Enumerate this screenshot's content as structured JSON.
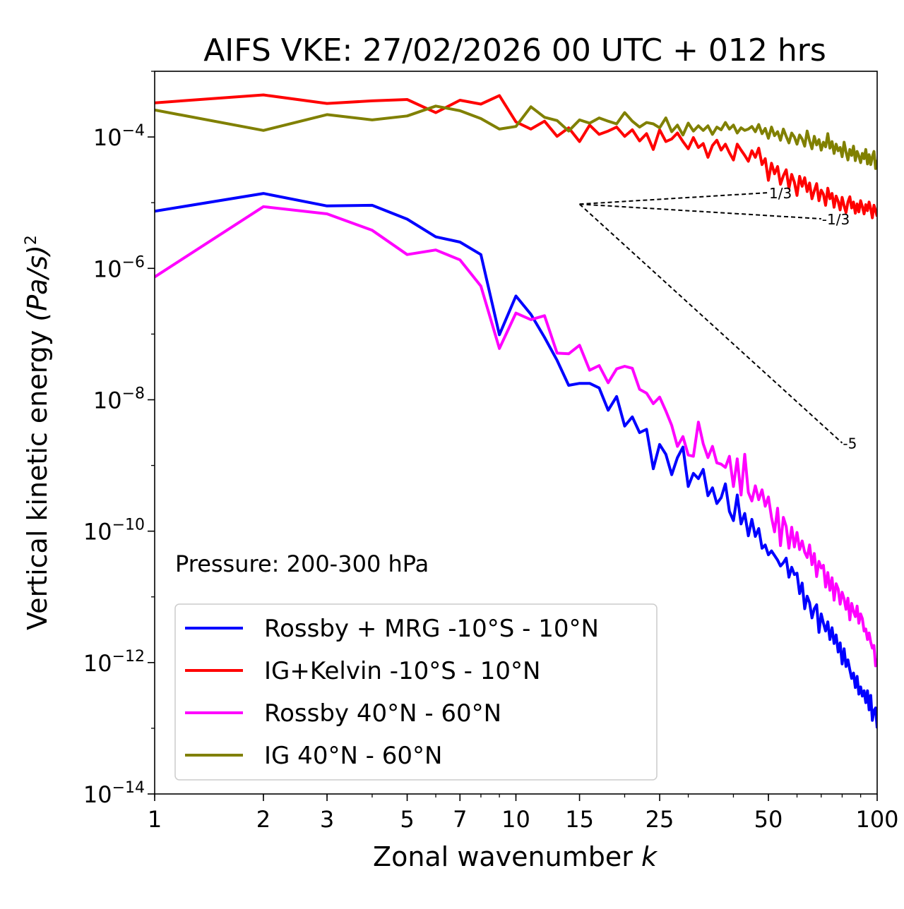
{
  "chart_data": {
    "type": "line",
    "title": "AIFS VKE: 27/02/2026 00 UTC + 012 hrs",
    "xlabel": "Zonal wavenumber",
    "xlabel_var": "k",
    "ylabel": "Vertical kinetic energy",
    "ylabel_unit": "(Pa/s)",
    "ylabel_exp": "2",
    "xscale": "log",
    "yscale": "log",
    "xlim": [
      1,
      100
    ],
    "ylim": [
      1e-14,
      0.001
    ],
    "x_ticks": [
      "1",
      "2",
      "3",
      "5",
      "7",
      "10",
      "15",
      "25",
      "50",
      "100"
    ],
    "y_ticks": [
      {
        "base": "10",
        "exp": "−4",
        "value": -4
      },
      {
        "base": "10",
        "exp": "−6",
        "value": -6
      },
      {
        "base": "10",
        "exp": "−8",
        "value": -8
      },
      {
        "base": "10",
        "exp": "−10",
        "value": -10
      },
      {
        "base": "10",
        "exp": "−12",
        "value": -12
      },
      {
        "base": "10",
        "exp": "−14",
        "value": -14
      }
    ],
    "annotation": "Pressure: 200-300 hPa",
    "legend_position": "bottom-left",
    "slopes": [
      {
        "label": "1/3",
        "exponent": 0.3333,
        "x_start": 15,
        "y_start": 9.5e-06,
        "x_end": 50
      },
      {
        "label": "-1/3",
        "exponent": -0.3333,
        "x_start": 15,
        "y_start": 9.5e-06,
        "x_end": 70
      },
      {
        "label": "-5",
        "exponent": -5,
        "x_start": 15,
        "y_start": 9.5e-06,
        "x_end": 80
      }
    ],
    "x": [
      1,
      2,
      3,
      4,
      5,
      6,
      7,
      8,
      9,
      10,
      11,
      12,
      13,
      14,
      15,
      16,
      17,
      18,
      19,
      20,
      21,
      22,
      23,
      24,
      25,
      26,
      27,
      28,
      29,
      30,
      31,
      32,
      33,
      34,
      35,
      36,
      37,
      38,
      39,
      40,
      41,
      42,
      43,
      44,
      45,
      46,
      47,
      48,
      49,
      50,
      51,
      52,
      53,
      54,
      55,
      56,
      57,
      58,
      59,
      60,
      61,
      62,
      63,
      64,
      65,
      66,
      67,
      68,
      69,
      70,
      71,
      72,
      73,
      74,
      75,
      76,
      77,
      78,
      79,
      80,
      81,
      82,
      83,
      84,
      85,
      86,
      87,
      88,
      89,
      90,
      91,
      92,
      93,
      94,
      95,
      96,
      97,
      98,
      99,
      100
    ],
    "series": [
      {
        "name": "Rossby + MRG -10°S - 10°N",
        "color": "#0000ff",
        "log10_values": [
          -5.13,
          -4.86,
          -5.05,
          -5.04,
          -5.25,
          -5.52,
          -5.6,
          -5.79,
          -7.01,
          -6.42,
          -6.7,
          -7.05,
          -7.4,
          -7.78,
          -7.75,
          -7.75,
          -7.82,
          -8.16,
          -7.95,
          -8.4,
          -8.26,
          -8.5,
          -8.45,
          -9.05,
          -8.68,
          -8.83,
          -9.14,
          -8.88,
          -8.72,
          -9.32,
          -9.12,
          -9.2,
          -9.06,
          -9.46,
          -9.34,
          -9.58,
          -9.49,
          -9.28,
          -9.7,
          -9.84,
          -9.45,
          -9.89,
          -9.73,
          -10.07,
          -9.82,
          -10.08,
          -9.96,
          -10.26,
          -10.21,
          -10.36,
          -10.3,
          -10.37,
          -10.44,
          -10.53,
          -10.48,
          -10.41,
          -10.7,
          -10.55,
          -10.66,
          -10.64,
          -10.95,
          -10.79,
          -11.18,
          -10.99,
          -11.09,
          -11.32,
          -11.18,
          -11.12,
          -11.54,
          -11.26,
          -11.4,
          -11.52,
          -11.38,
          -11.65,
          -11.47,
          -11.71,
          -11.58,
          -11.84,
          -11.7,
          -12.02,
          -11.79,
          -12.06,
          -11.96,
          -12.11,
          -12.24,
          -12.16,
          -12.38,
          -12.21,
          -12.48,
          -12.37,
          -12.51,
          -12.43,
          -12.61,
          -12.43,
          -12.72,
          -12.5,
          -12.88,
          -12.73,
          -12.69,
          -13.0
        ]
      },
      {
        "name": "IG+Kelvin -10°S - 10°N",
        "color": "#ff0000",
        "log10_values": [
          -3.48,
          -3.36,
          -3.49,
          -3.45,
          -3.43,
          -3.63,
          -3.44,
          -3.5,
          -3.37,
          -3.77,
          -3.88,
          -3.76,
          -3.99,
          -3.86,
          -4.07,
          -3.82,
          -3.96,
          -3.91,
          -3.85,
          -3.99,
          -3.89,
          -4.06,
          -3.95,
          -4.19,
          -3.89,
          -4.07,
          -4.03,
          -3.94,
          -4.07,
          -4.18,
          -4.01,
          -4.16,
          -4.1,
          -4.31,
          -4.13,
          -4.05,
          -4.2,
          -4.11,
          -4.24,
          -4.35,
          -4.11,
          -4.2,
          -4.28,
          -4.37,
          -4.21,
          -4.31,
          -4.17,
          -4.42,
          -4.33,
          -4.66,
          -4.4,
          -4.56,
          -4.45,
          -4.72,
          -4.59,
          -4.5,
          -4.78,
          -4.57,
          -4.69,
          -4.89,
          -4.6,
          -4.75,
          -4.62,
          -4.83,
          -4.7,
          -4.94,
          -4.82,
          -4.71,
          -4.97,
          -4.81,
          -4.87,
          -5.04,
          -4.78,
          -4.94,
          -4.86,
          -5.07,
          -4.9,
          -4.98,
          -5.11,
          -4.92,
          -5.05,
          -5.15,
          -4.99,
          -4.91,
          -5.08,
          -4.99,
          -5.16,
          -5.02,
          -5.14,
          -4.97,
          -5.06,
          -5.17,
          -5.03,
          -5.12,
          -4.99,
          -5.09,
          -5.23,
          -5.04,
          -5.12,
          -5.21
        ]
      },
      {
        "name": "Rossby 40°N - 60°N",
        "color": "#ff00ff",
        "log10_values": [
          -6.13,
          -5.06,
          -5.17,
          -5.42,
          -5.79,
          -5.72,
          -5.87,
          -6.27,
          -7.22,
          -6.68,
          -6.78,
          -6.72,
          -7.29,
          -7.3,
          -7.17,
          -7.55,
          -7.48,
          -7.74,
          -7.53,
          -7.49,
          -7.52,
          -7.84,
          -7.9,
          -8.06,
          -7.96,
          -8.17,
          -8.39,
          -8.71,
          -8.56,
          -8.84,
          -8.86,
          -8.34,
          -8.67,
          -8.88,
          -8.71,
          -8.96,
          -8.98,
          -9.03,
          -8.86,
          -9.32,
          -8.9,
          -9.45,
          -8.83,
          -9.41,
          -9.54,
          -9.31,
          -9.52,
          -9.37,
          -9.62,
          -9.48,
          -9.79,
          -10.01,
          -9.65,
          -10.22,
          -9.79,
          -9.93,
          -10.26,
          -9.94,
          -10.24,
          -10.02,
          -10.28,
          -10.15,
          -10.32,
          -10.4,
          -10.21,
          -10.51,
          -10.34,
          -10.69,
          -10.46,
          -10.56,
          -10.52,
          -10.85,
          -10.63,
          -10.9,
          -10.71,
          -11.05,
          -10.8,
          -10.88,
          -11.11,
          -10.93,
          -11.03,
          -11.19,
          -11.02,
          -11.35,
          -11.1,
          -11.22,
          -11.3,
          -11.14,
          -11.4,
          -11.26,
          -11.33,
          -11.52,
          -11.49,
          -11.65,
          -11.55,
          -11.69,
          -11.78,
          -11.74,
          -12.05,
          -11.94
        ]
      },
      {
        "name": "IG 40°N - 60°N",
        "color": "#808000",
        "log10_values": [
          -3.59,
          -3.9,
          -3.66,
          -3.74,
          -3.68,
          -3.53,
          -3.6,
          -3.72,
          -3.88,
          -3.84,
          -3.54,
          -3.7,
          -3.75,
          -3.91,
          -3.74,
          -3.79,
          -3.71,
          -3.76,
          -3.8,
          -3.63,
          -3.76,
          -3.85,
          -3.78,
          -3.8,
          -3.86,
          -3.71,
          -3.92,
          -3.82,
          -3.97,
          -3.79,
          -3.91,
          -3.83,
          -3.9,
          -3.83,
          -3.96,
          -3.85,
          -3.89,
          -3.78,
          -3.88,
          -3.82,
          -3.94,
          -3.86,
          -3.9,
          -3.88,
          -3.84,
          -3.92,
          -3.81,
          -3.95,
          -3.87,
          -4.02,
          -3.85,
          -3.98,
          -3.92,
          -4.05,
          -3.88,
          -3.99,
          -4.09,
          -3.94,
          -4.0,
          -4.11,
          -3.97,
          -4.03,
          -4.14,
          -3.91,
          -4.06,
          -4.18,
          -3.99,
          -4.12,
          -4.04,
          -4.2,
          -4.08,
          -4.15,
          -3.95,
          -4.17,
          -4.07,
          -4.25,
          -4.11,
          -4.21,
          -4.16,
          -4.3,
          -4.08,
          -4.23,
          -4.35,
          -4.19,
          -4.28,
          -4.14,
          -4.36,
          -4.22,
          -4.29,
          -4.39,
          -4.25,
          -4.33,
          -4.19,
          -4.41,
          -4.27,
          -4.42,
          -4.3,
          -4.22,
          -4.48,
          -4.35
        ]
      }
    ]
  }
}
